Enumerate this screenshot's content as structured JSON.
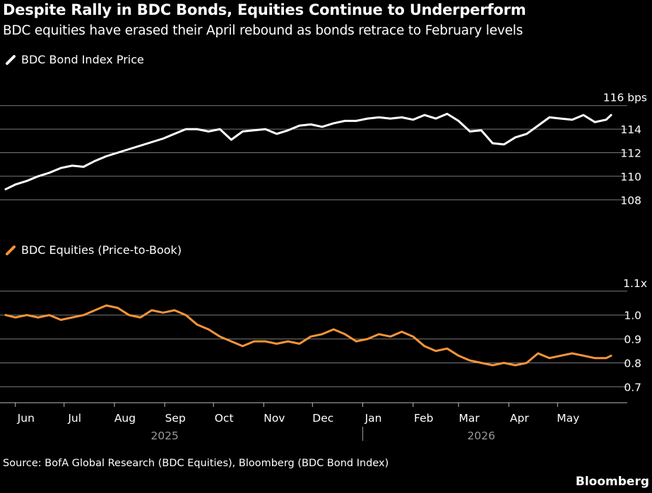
{
  "header": {
    "title": "Despite Rally in BDC Bonds, Equities Continue to Underperform",
    "subtitle": "BDC equities have erased their April rebound as bonds retrace to February levels"
  },
  "footer": {
    "source": "Source: BofA Global Research (BDC Equities), Bloomberg (BDC Bond Index)",
    "brand": "Bloomberg"
  },
  "colors": {
    "background": "#000000",
    "bond_series": "#ffffff",
    "equity_series": "#f5943a",
    "grid": "#7a7a7a",
    "axis_text": "#ffffff",
    "year_text": "#9a9a9a"
  },
  "chart_data": [
    {
      "type": "line",
      "legend": "BDC Bond Index Price",
      "y_unit_label": "116 bps",
      "y_ticks": [
        108,
        110,
        112,
        114
      ],
      "ylim": [
        107,
        117
      ],
      "grid": true,
      "series": [
        {
          "name": "BDC Bond Index Price",
          "color": "#ffffff",
          "points": [
            [
              "2025-05-26",
              108.9
            ],
            [
              "2025-06-01",
              109.3
            ],
            [
              "2025-06-08",
              109.6
            ],
            [
              "2025-06-15",
              110.0
            ],
            [
              "2025-06-22",
              110.3
            ],
            [
              "2025-06-29",
              110.7
            ],
            [
              "2025-07-06",
              110.9
            ],
            [
              "2025-07-13",
              110.8
            ],
            [
              "2025-07-20",
              111.3
            ],
            [
              "2025-07-27",
              111.7
            ],
            [
              "2025-08-03",
              112.0
            ],
            [
              "2025-08-10",
              112.3
            ],
            [
              "2025-08-17",
              112.6
            ],
            [
              "2025-08-24",
              112.9
            ],
            [
              "2025-08-31",
              113.2
            ],
            [
              "2025-09-07",
              113.6
            ],
            [
              "2025-09-14",
              114.0
            ],
            [
              "2025-09-21",
              114.0
            ],
            [
              "2025-09-28",
              113.8
            ],
            [
              "2025-10-05",
              114.0
            ],
            [
              "2025-10-12",
              113.1
            ],
            [
              "2025-10-19",
              113.8
            ],
            [
              "2025-10-26",
              113.9
            ],
            [
              "2025-11-02",
              114.0
            ],
            [
              "2025-11-09",
              113.6
            ],
            [
              "2025-11-16",
              113.9
            ],
            [
              "2025-11-23",
              114.3
            ],
            [
              "2025-11-30",
              114.4
            ],
            [
              "2025-12-07",
              114.2
            ],
            [
              "2025-12-14",
              114.5
            ],
            [
              "2025-12-21",
              114.7
            ],
            [
              "2025-12-28",
              114.7
            ],
            [
              "2026-01-04",
              114.9
            ],
            [
              "2026-01-11",
              115.0
            ],
            [
              "2026-01-18",
              114.9
            ],
            [
              "2026-01-25",
              115.0
            ],
            [
              "2026-02-01",
              114.8
            ],
            [
              "2026-02-08",
              115.2
            ],
            [
              "2026-02-15",
              114.9
            ],
            [
              "2026-02-22",
              115.3
            ],
            [
              "2026-03-01",
              114.7
            ],
            [
              "2026-03-08",
              113.8
            ],
            [
              "2026-03-15",
              113.9
            ],
            [
              "2026-03-22",
              112.8
            ],
            [
              "2026-03-29",
              112.7
            ],
            [
              "2026-04-05",
              113.3
            ],
            [
              "2026-04-12",
              113.6
            ],
            [
              "2026-04-19",
              114.3
            ],
            [
              "2026-04-26",
              115.0
            ],
            [
              "2026-05-03",
              114.9
            ],
            [
              "2026-05-10",
              114.8
            ],
            [
              "2026-05-17",
              115.2
            ],
            [
              "2026-05-24",
              114.6
            ],
            [
              "2026-05-31",
              114.8
            ],
            [
              "2026-06-03",
              115.2
            ]
          ]
        }
      ]
    },
    {
      "type": "line",
      "legend": "BDC Equities (Price-to-Book)",
      "y_unit_label": "1.1x",
      "y_ticks": [
        0.7,
        0.8,
        0.9,
        1.0
      ],
      "ylim": [
        0.66,
        1.12
      ],
      "grid": true,
      "series": [
        {
          "name": "BDC Equities (Price-to-Book)",
          "color": "#f5943a",
          "points": [
            [
              "2025-05-26",
              1.0
            ],
            [
              "2025-06-01",
              0.99
            ],
            [
              "2025-06-08",
              1.0
            ],
            [
              "2025-06-15",
              0.99
            ],
            [
              "2025-06-22",
              1.0
            ],
            [
              "2025-06-29",
              0.98
            ],
            [
              "2025-07-06",
              0.99
            ],
            [
              "2025-07-13",
              1.0
            ],
            [
              "2025-07-20",
              1.02
            ],
            [
              "2025-07-27",
              1.04
            ],
            [
              "2025-08-03",
              1.03
            ],
            [
              "2025-08-10",
              1.0
            ],
            [
              "2025-08-17",
              0.99
            ],
            [
              "2025-08-24",
              1.02
            ],
            [
              "2025-08-31",
              1.01
            ],
            [
              "2025-09-07",
              1.02
            ],
            [
              "2025-09-14",
              1.0
            ],
            [
              "2025-09-21",
              0.96
            ],
            [
              "2025-09-28",
              0.94
            ],
            [
              "2025-10-05",
              0.91
            ],
            [
              "2025-10-12",
              0.89
            ],
            [
              "2025-10-19",
              0.87
            ],
            [
              "2025-10-26",
              0.89
            ],
            [
              "2025-11-02",
              0.89
            ],
            [
              "2025-11-09",
              0.88
            ],
            [
              "2025-11-16",
              0.89
            ],
            [
              "2025-11-23",
              0.88
            ],
            [
              "2025-11-30",
              0.91
            ],
            [
              "2025-12-07",
              0.92
            ],
            [
              "2025-12-14",
              0.94
            ],
            [
              "2025-12-21",
              0.92
            ],
            [
              "2025-12-28",
              0.89
            ],
            [
              "2026-01-04",
              0.9
            ],
            [
              "2026-01-11",
              0.92
            ],
            [
              "2026-01-18",
              0.91
            ],
            [
              "2026-01-25",
              0.93
            ],
            [
              "2026-02-01",
              0.91
            ],
            [
              "2026-02-08",
              0.87
            ],
            [
              "2026-02-15",
              0.85
            ],
            [
              "2026-02-22",
              0.86
            ],
            [
              "2026-03-01",
              0.83
            ],
            [
              "2026-03-08",
              0.81
            ],
            [
              "2026-03-15",
              0.8
            ],
            [
              "2026-03-22",
              0.79
            ],
            [
              "2026-03-29",
              0.8
            ],
            [
              "2026-04-05",
              0.79
            ],
            [
              "2026-04-12",
              0.8
            ],
            [
              "2026-04-19",
              0.84
            ],
            [
              "2026-04-26",
              0.82
            ],
            [
              "2026-05-03",
              0.83
            ],
            [
              "2026-05-10",
              0.84
            ],
            [
              "2026-05-17",
              0.83
            ],
            [
              "2026-05-24",
              0.82
            ],
            [
              "2026-05-31",
              0.82
            ],
            [
              "2026-06-03",
              0.83
            ]
          ]
        }
      ]
    }
  ],
  "x_axis": {
    "start": "2025-05-26",
    "end": "2026-06-06",
    "months": [
      {
        "label": "Jun",
        "date": "2025-06-01"
      },
      {
        "label": "Jul",
        "date": "2025-07-01"
      },
      {
        "label": "Aug",
        "date": "2025-08-01"
      },
      {
        "label": "Sep",
        "date": "2025-09-01"
      },
      {
        "label": "Oct",
        "date": "2025-10-01"
      },
      {
        "label": "Nov",
        "date": "2025-11-01"
      },
      {
        "label": "Dec",
        "date": "2025-12-01"
      },
      {
        "label": "Jan",
        "date": "2026-01-01"
      },
      {
        "label": "Feb",
        "date": "2026-02-01"
      },
      {
        "label": "Mar",
        "date": "2026-03-01"
      },
      {
        "label": "Apr",
        "date": "2026-04-01"
      },
      {
        "label": "May",
        "date": "2026-05-01"
      }
    ],
    "years": [
      {
        "label": "2025",
        "date": "2025-09-01"
      },
      {
        "label": "2026",
        "date": "2026-03-15"
      }
    ],
    "year_boundary": "2026-01-01"
  }
}
